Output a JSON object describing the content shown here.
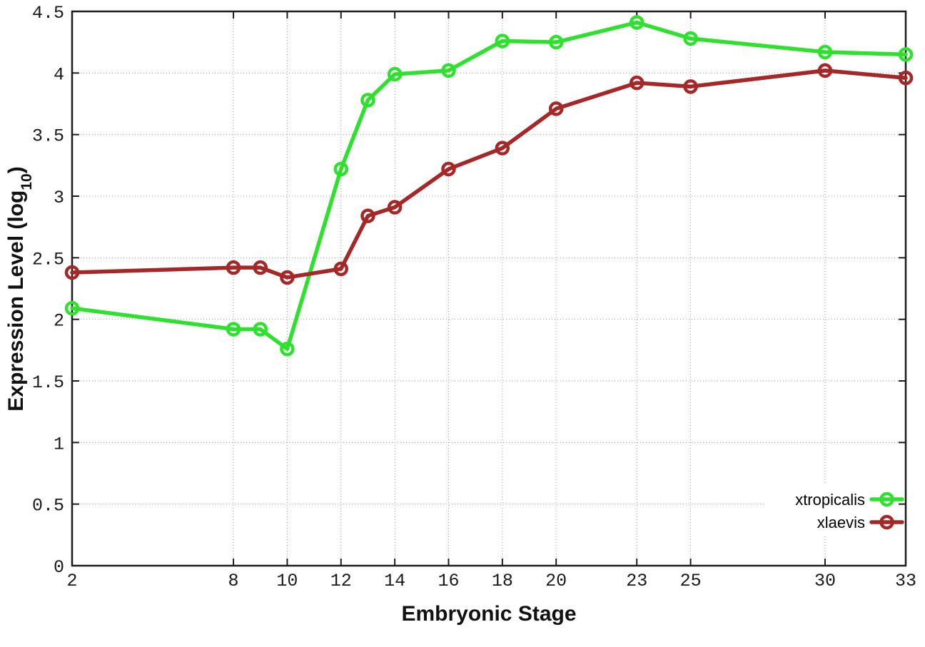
{
  "chart_data": {
    "type": "line",
    "title": "",
    "xlabel": "Embryonic Stage",
    "ylabel_main": "Expression Level (log",
    "ylabel_sub": "10",
    "ylabel_close": ")",
    "x": [
      2,
      8,
      9,
      10,
      12,
      13,
      14,
      16,
      18,
      20,
      23,
      25,
      30,
      33
    ],
    "series": [
      {
        "name": "xtropicalis",
        "color": "#2fe02f",
        "values": [
          2.09,
          1.92,
          1.92,
          1.76,
          3.22,
          3.78,
          3.99,
          4.02,
          4.26,
          4.25,
          4.41,
          4.28,
          4.17,
          4.15
        ]
      },
      {
        "name": "xlaevis",
        "color": "#a52828",
        "values": [
          2.38,
          2.42,
          2.42,
          2.34,
          2.41,
          2.84,
          2.91,
          3.22,
          3.39,
          3.71,
          3.92,
          3.89,
          4.02,
          3.96
        ]
      }
    ],
    "x_ticks": [
      2,
      8,
      10,
      12,
      14,
      16,
      18,
      20,
      23,
      25,
      30,
      33
    ],
    "y_ticks": [
      "0",
      "0.5",
      "1",
      "1.5",
      "2",
      "2.5",
      "3",
      "3.5",
      "4",
      "4.5"
    ],
    "y_tick_values": [
      0,
      0.5,
      1,
      1.5,
      2,
      2.5,
      3,
      3.5,
      4,
      4.5
    ],
    "xlim": [
      2,
      33
    ],
    "ylim": [
      0,
      4.5
    ],
    "grid": true,
    "legend_position": "bottom-right",
    "colors": {
      "border": "#1c1c1c",
      "grid": "#999999",
      "background": "#ffffff",
      "text": "#1a1a1a"
    }
  }
}
